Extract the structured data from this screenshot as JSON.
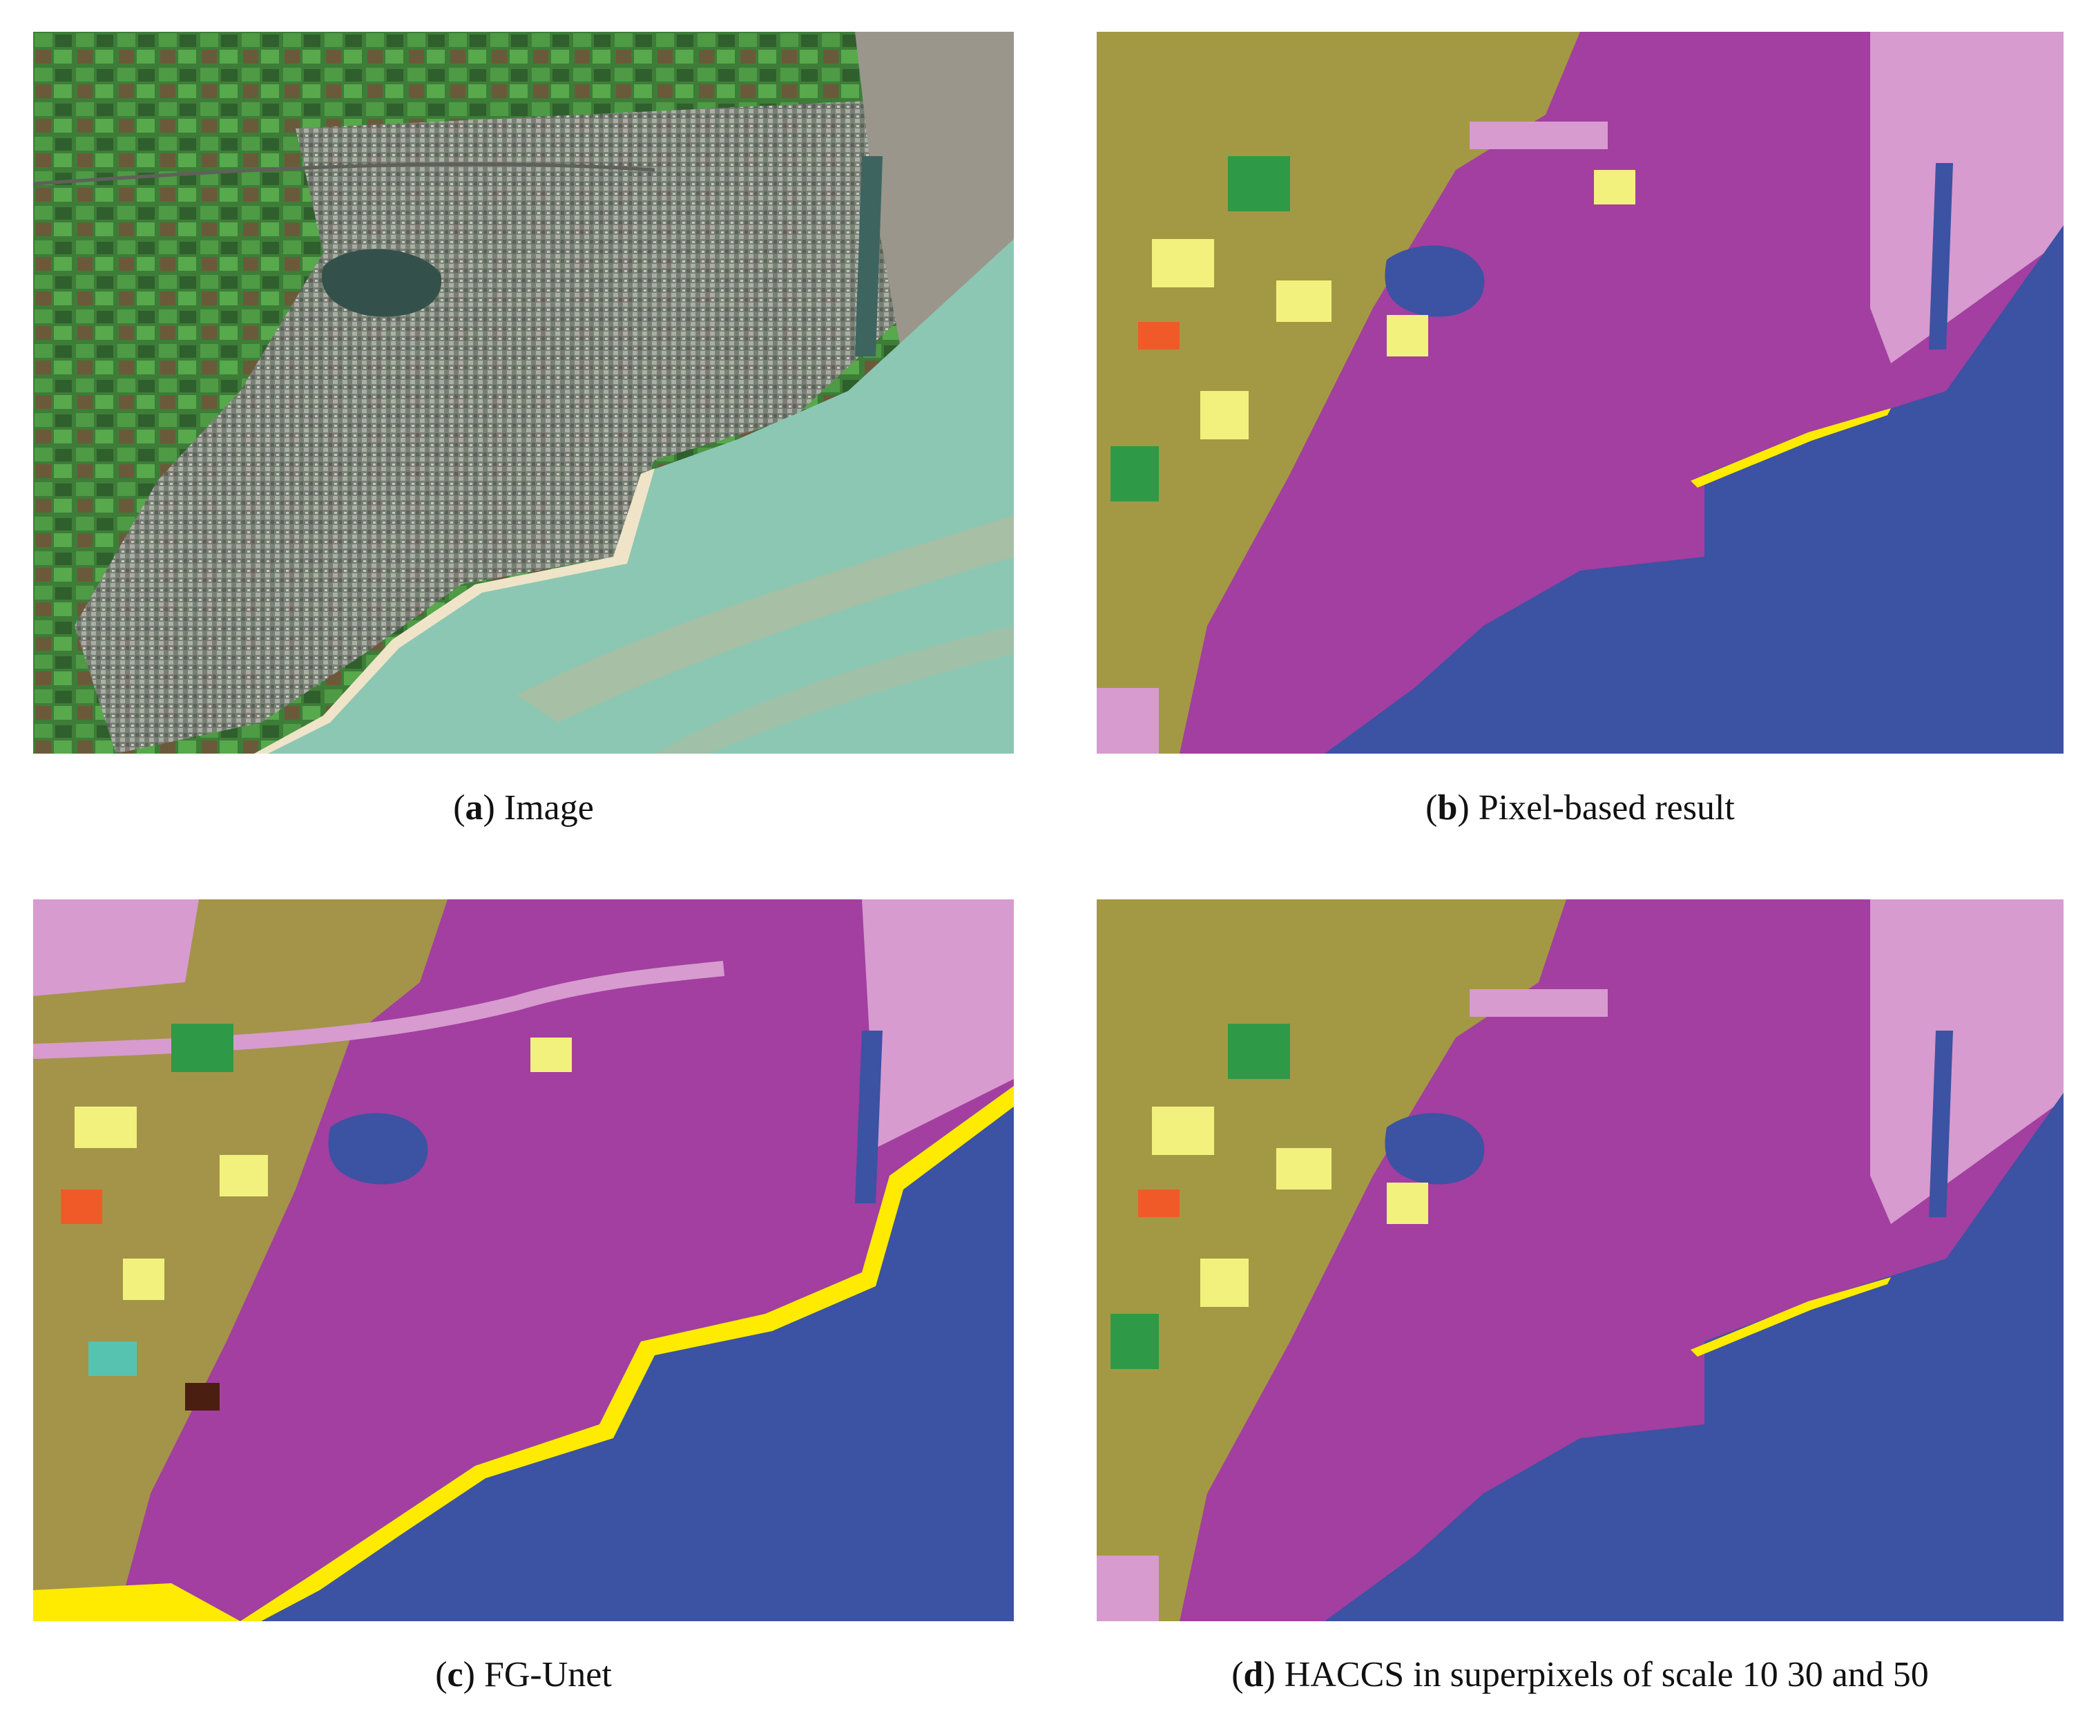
{
  "figure": {
    "panels": [
      {
        "id": "a",
        "letter": "a",
        "label": "Image"
      },
      {
        "id": "b",
        "letter": "b",
        "label": "Pixel-based result"
      },
      {
        "id": "c",
        "letter": "c",
        "label": "FG-Unet"
      },
      {
        "id": "d",
        "letter": "d",
        "label": "HACCS in superpixels of scale 10 30 and 50"
      }
    ]
  },
  "colors": {
    "water": "#3c52a3",
    "urban_dense": "#a23fa0",
    "urban_light": "#d79bcf",
    "agri": "#a3a33a",
    "crop_yellow": "#f3f17d",
    "forest_green": "#2e9a48",
    "orange": "#f05a28",
    "beach": "#ffeb00",
    "teal": "#56c2b0",
    "dark": "#4a1e10",
    "sat_sea": "#8fc3ae",
    "sat_land": "#5a6e55",
    "sat_city": "#8e8e8a",
    "sat_field": "#3f8a3a"
  }
}
